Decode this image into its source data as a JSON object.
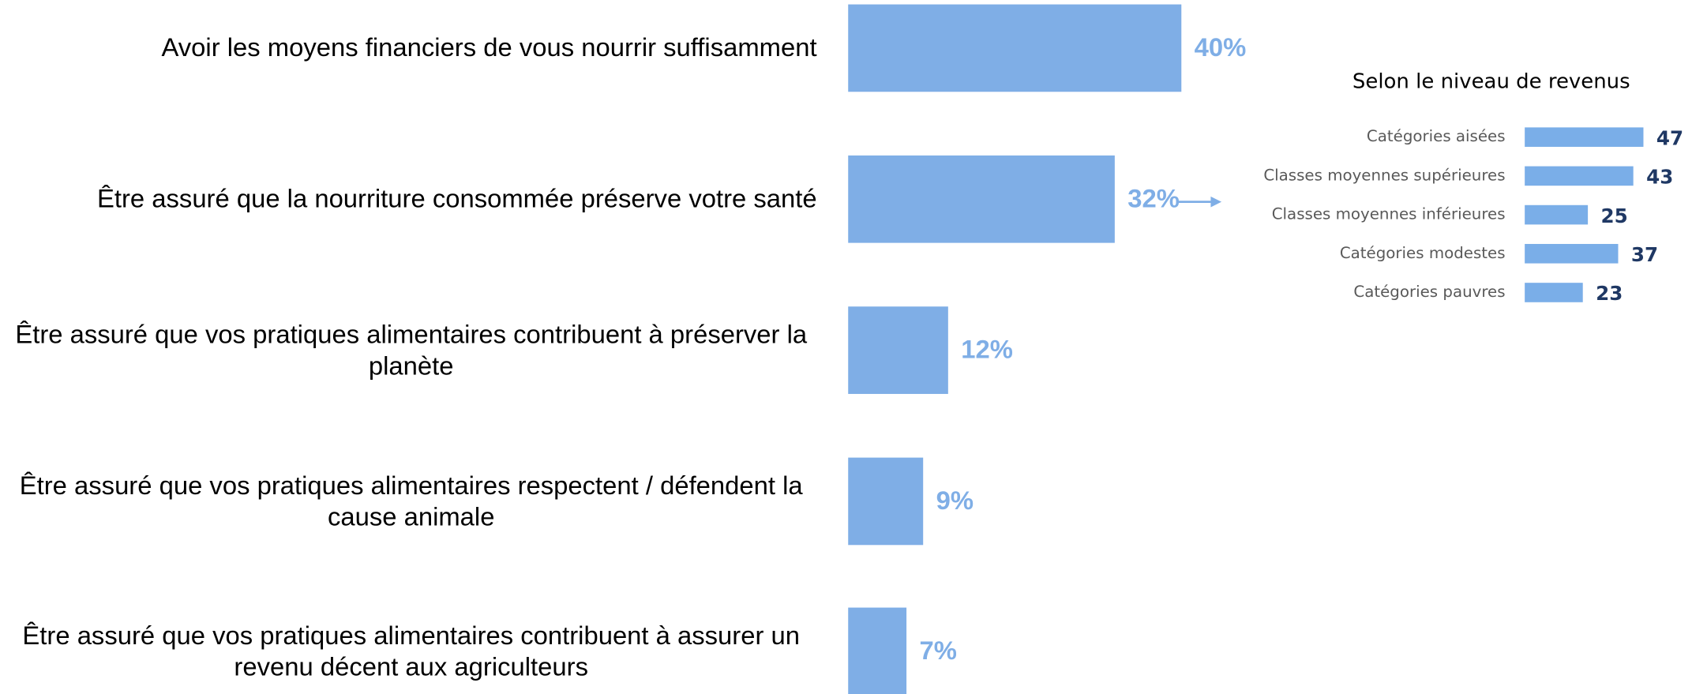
{
  "chart_data": [
    {
      "type": "bar",
      "orientation": "horizontal",
      "categories": [
        "Avoir les moyens financiers de vous nourrir suffisamment",
        "Être assuré que la nourriture consommée préserve votre santé",
        "Être assuré que vos pratiques alimentaires contribuent à préserver la planète",
        "Être assuré que vos pratiques alimentaires respectent / défendent la cause animale",
        "Être assuré que vos pratiques alimentaires contribuent à assurer un revenu décent aux agriculteurs"
      ],
      "values": [
        40,
        32,
        12,
        9,
        7
      ],
      "value_labels": [
        "40%",
        "32%",
        "12%",
        "9%",
        "7%"
      ],
      "color": "#7faee6"
    },
    {
      "type": "bar",
      "orientation": "horizontal",
      "title": "Selon le niveau de revenus",
      "categories": [
        "Catégories aisées",
        "Classes moyennes supérieures",
        "Classes moyennes inférieures",
        "Catégories modestes",
        "Catégories pauvres"
      ],
      "values": [
        47,
        43,
        25,
        37,
        23
      ],
      "color": "#7aaee8"
    }
  ]
}
